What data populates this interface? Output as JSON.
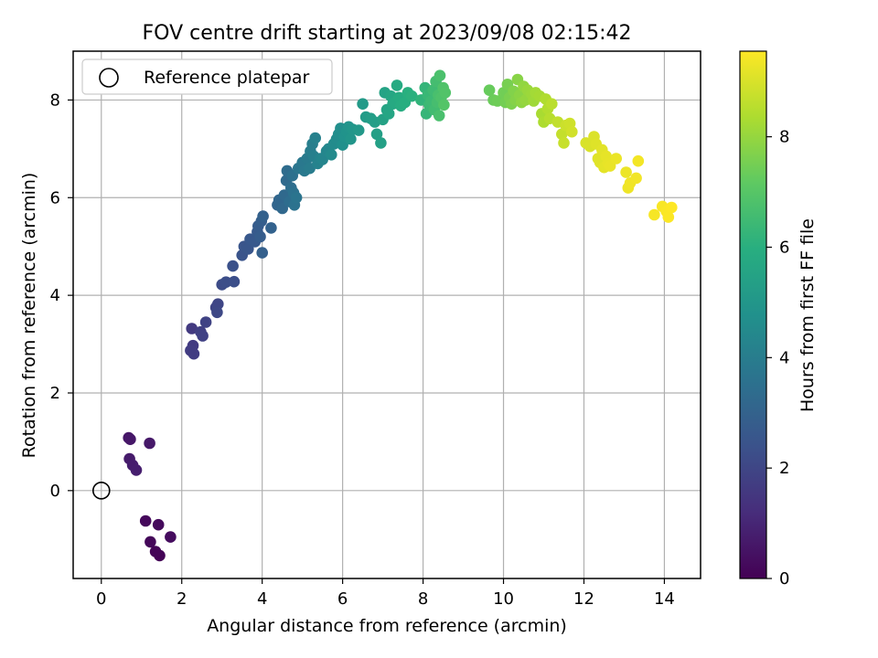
{
  "chart_data": {
    "type": "scatter",
    "title": "FOV centre drift starting at 2023/09/08 02:15:42",
    "xlabel": "Angular distance from reference (arcmin)",
    "ylabel": "Rotation from reference (arcmin)",
    "xlim": [
      -0.7,
      14.9
    ],
    "ylim": [
      -1.8,
      9.0
    ],
    "xticks": [
      "0",
      "2",
      "4",
      "6",
      "8",
      "10",
      "12",
      "14"
    ],
    "yticks": [
      "0",
      "2",
      "4",
      "6",
      "8"
    ],
    "grid": true,
    "legend": {
      "position": "top-left",
      "entries": [
        "Reference platepar"
      ]
    },
    "reference_point": {
      "x": 0.0,
      "y": 0.0,
      "label": "Reference platepar"
    },
    "colorbar": {
      "label": "Hours from first FF file",
      "ticks": [
        "0",
        "2",
        "4",
        "6",
        "8"
      ],
      "range": [
        0,
        9.55
      ],
      "colormap": "viridis"
    },
    "series": [
      {
        "points": [
          [
            1.45,
            -1.33,
            0.05
          ],
          [
            1.35,
            -1.25,
            0.1
          ],
          [
            1.22,
            -1.05,
            0.15
          ],
          [
            1.1,
            -0.62,
            0.2
          ],
          [
            1.42,
            -0.7,
            0.25
          ],
          [
            1.72,
            -0.95,
            0.3
          ],
          [
            0.68,
            1.08,
            0.55
          ],
          [
            0.72,
            1.05,
            0.6
          ],
          [
            1.2,
            0.97,
            0.65
          ],
          [
            0.7,
            0.65,
            0.7
          ],
          [
            0.78,
            0.52,
            0.75
          ],
          [
            0.87,
            0.42,
            0.8
          ],
          [
            2.25,
            3.32,
            1.6
          ],
          [
            2.28,
            2.97,
            1.65
          ],
          [
            2.22,
            2.87,
            1.7
          ],
          [
            2.3,
            2.8,
            1.72
          ],
          [
            2.47,
            3.25,
            1.8
          ],
          [
            2.52,
            3.17,
            1.85
          ],
          [
            2.6,
            3.45,
            1.9
          ],
          [
            2.85,
            3.75,
            1.95
          ],
          [
            2.9,
            3.82,
            2.0
          ],
          [
            2.88,
            3.65,
            2.05
          ],
          [
            3.0,
            4.22,
            2.2
          ],
          [
            3.1,
            4.27,
            2.25
          ],
          [
            3.3,
            4.28,
            2.3
          ],
          [
            3.27,
            4.6,
            2.35
          ],
          [
            3.5,
            4.82,
            2.45
          ],
          [
            3.55,
            5.0,
            2.5
          ],
          [
            3.65,
            4.95,
            2.55
          ],
          [
            3.7,
            5.15,
            2.6
          ],
          [
            3.82,
            5.1,
            2.65
          ],
          [
            3.88,
            5.3,
            2.7
          ],
          [
            3.9,
            5.42,
            2.75
          ],
          [
            3.95,
            5.2,
            2.8
          ],
          [
            3.98,
            5.52,
            2.85
          ],
          [
            4.0,
            4.87,
            2.9
          ],
          [
            4.02,
            5.62,
            2.95
          ],
          [
            4.22,
            5.38,
            3.0
          ],
          [
            4.38,
            5.85,
            3.1
          ],
          [
            4.42,
            5.95,
            3.15
          ],
          [
            4.5,
            5.78,
            3.2
          ],
          [
            4.55,
            6.05,
            3.25
          ],
          [
            4.6,
            6.35,
            3.3
          ],
          [
            4.62,
            6.55,
            3.35
          ],
          [
            4.68,
            5.92,
            3.4
          ],
          [
            4.72,
            6.2,
            3.45
          ],
          [
            4.75,
            6.45,
            3.5
          ],
          [
            4.78,
            6.1,
            3.55
          ],
          [
            4.8,
            5.85,
            3.6
          ],
          [
            4.85,
            6.0,
            3.65
          ],
          [
            4.9,
            6.6,
            3.7
          ],
          [
            5.0,
            6.72,
            3.8
          ],
          [
            5.05,
            6.55,
            3.85
          ],
          [
            5.12,
            6.8,
            3.9
          ],
          [
            5.18,
            6.6,
            3.95
          ],
          [
            5.2,
            6.95,
            4.0
          ],
          [
            5.25,
            7.1,
            4.05
          ],
          [
            5.28,
            6.85,
            4.1
          ],
          [
            5.32,
            7.22,
            4.15
          ],
          [
            5.38,
            6.7,
            4.2
          ],
          [
            5.45,
            6.8,
            4.25
          ],
          [
            5.5,
            6.78,
            4.3
          ],
          [
            5.6,
            6.95,
            4.35
          ],
          [
            5.65,
            7.0,
            4.4
          ],
          [
            5.72,
            6.88,
            4.5
          ],
          [
            5.78,
            7.1,
            4.55
          ],
          [
            5.85,
            7.2,
            4.6
          ],
          [
            5.9,
            7.3,
            4.65
          ],
          [
            5.95,
            7.42,
            4.7
          ],
          [
            6.0,
            7.08,
            4.75
          ],
          [
            6.05,
            7.25,
            4.8
          ],
          [
            6.1,
            7.35,
            4.85
          ],
          [
            6.15,
            7.45,
            4.9
          ],
          [
            6.2,
            7.2,
            4.95
          ],
          [
            6.25,
            7.4,
            5.0
          ],
          [
            6.4,
            7.38,
            5.05
          ],
          [
            6.5,
            7.92,
            5.15
          ],
          [
            6.58,
            7.65,
            5.2
          ],
          [
            6.7,
            7.62,
            5.25
          ],
          [
            6.8,
            7.55,
            5.3
          ],
          [
            6.85,
            7.3,
            5.35
          ],
          [
            6.95,
            7.12,
            5.4
          ],
          [
            7.0,
            7.6,
            5.45
          ],
          [
            7.05,
            8.15,
            5.5
          ],
          [
            7.1,
            7.8,
            5.55
          ],
          [
            7.15,
            7.72,
            5.6
          ],
          [
            7.2,
            8.08,
            5.65
          ],
          [
            7.25,
            7.92,
            5.7
          ],
          [
            7.3,
            7.95,
            5.75
          ],
          [
            7.35,
            8.3,
            5.8
          ],
          [
            7.4,
            8.05,
            5.85
          ],
          [
            7.45,
            7.88,
            5.9
          ],
          [
            7.55,
            7.95,
            5.95
          ],
          [
            7.62,
            8.15,
            6.0
          ],
          [
            7.72,
            8.08,
            6.05
          ],
          [
            7.95,
            8.0,
            6.2
          ],
          [
            8.05,
            8.25,
            6.25
          ],
          [
            8.08,
            7.72,
            6.3
          ],
          [
            8.12,
            8.1,
            6.35
          ],
          [
            8.15,
            7.9,
            6.4
          ],
          [
            8.2,
            7.98,
            6.45
          ],
          [
            8.25,
            8.2,
            6.5
          ],
          [
            8.28,
            7.8,
            6.55
          ],
          [
            8.32,
            8.38,
            6.6
          ],
          [
            8.35,
            7.95,
            6.65
          ],
          [
            8.38,
            8.1,
            6.7
          ],
          [
            8.4,
            7.68,
            6.72
          ],
          [
            8.42,
            8.5,
            6.75
          ],
          [
            8.45,
            8.05,
            6.8
          ],
          [
            8.5,
            8.25,
            6.85
          ],
          [
            8.55,
            8.15,
            6.9
          ],
          [
            8.52,
            7.9,
            6.95
          ],
          [
            9.65,
            8.2,
            7.3
          ],
          [
            9.75,
            8.0,
            7.35
          ],
          [
            9.85,
            7.98,
            7.4
          ],
          [
            10.0,
            8.15,
            7.45
          ],
          [
            10.05,
            7.95,
            7.5
          ],
          [
            10.1,
            8.32,
            7.55
          ],
          [
            10.15,
            8.05,
            7.6
          ],
          [
            10.2,
            7.92,
            7.65
          ],
          [
            10.25,
            8.18,
            7.7
          ],
          [
            10.3,
            8.0,
            7.75
          ],
          [
            10.35,
            8.42,
            7.8
          ],
          [
            10.4,
            8.1,
            7.85
          ],
          [
            10.45,
            7.95,
            7.9
          ],
          [
            10.5,
            8.28,
            7.95
          ],
          [
            10.55,
            8.0,
            8.0
          ],
          [
            10.6,
            8.2,
            8.05
          ],
          [
            10.7,
            8.12,
            8.1
          ],
          [
            10.75,
            7.98,
            8.15
          ],
          [
            10.8,
            8.15,
            8.2
          ],
          [
            10.9,
            8.08,
            8.25
          ],
          [
            10.95,
            7.72,
            8.3
          ],
          [
            11.0,
            7.55,
            8.35
          ],
          [
            11.05,
            8.02,
            8.4
          ],
          [
            11.1,
            7.82,
            8.45
          ],
          [
            11.15,
            7.62,
            8.5
          ],
          [
            11.2,
            7.92,
            8.55
          ],
          [
            11.35,
            7.55,
            8.65
          ],
          [
            11.45,
            7.3,
            8.7
          ],
          [
            11.5,
            7.12,
            8.75
          ],
          [
            11.55,
            7.48,
            8.8
          ],
          [
            11.65,
            7.52,
            8.85
          ],
          [
            11.7,
            7.35,
            8.9
          ],
          [
            12.05,
            7.12,
            9.0
          ],
          [
            12.15,
            7.05,
            9.02
          ],
          [
            12.25,
            7.25,
            9.05
          ],
          [
            12.3,
            7.1,
            9.08
          ],
          [
            12.35,
            6.8,
            9.1
          ],
          [
            12.4,
            6.72,
            9.12
          ],
          [
            12.45,
            6.98,
            9.15
          ],
          [
            12.5,
            6.62,
            9.18
          ],
          [
            12.55,
            6.85,
            9.2
          ],
          [
            12.6,
            6.7,
            9.22
          ],
          [
            12.65,
            6.65,
            9.25
          ],
          [
            12.8,
            6.8,
            9.28
          ],
          [
            13.05,
            6.52,
            9.3
          ],
          [
            13.1,
            6.2,
            9.32
          ],
          [
            13.15,
            6.3,
            9.35
          ],
          [
            13.3,
            6.4,
            9.38
          ],
          [
            13.35,
            6.75,
            9.4
          ],
          [
            13.75,
            5.65,
            9.45
          ],
          [
            13.95,
            5.82,
            9.48
          ],
          [
            14.05,
            5.72,
            9.5
          ],
          [
            14.1,
            5.6,
            9.52
          ],
          [
            14.18,
            5.8,
            9.55
          ]
        ]
      }
    ]
  }
}
